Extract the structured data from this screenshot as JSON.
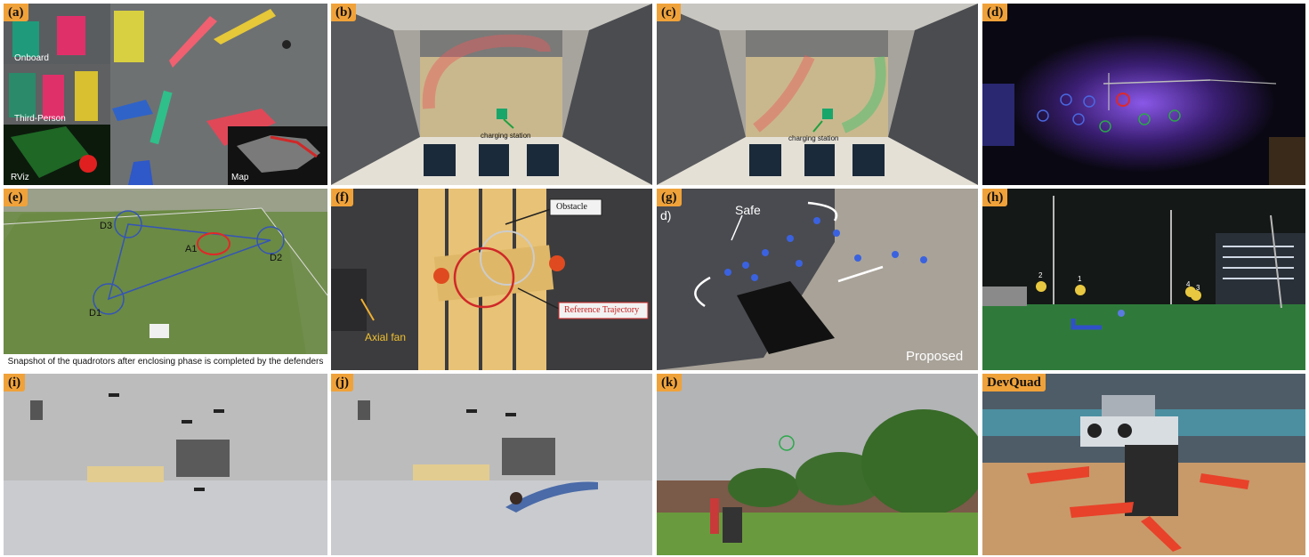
{
  "panels": {
    "a": {
      "tag": "(a)",
      "labels": {
        "onboard": "Onboard",
        "third_person": "Third-Person",
        "rviz": "RViz",
        "map": "Map"
      }
    },
    "b": {
      "tag": "(b)",
      "labels": {
        "charging_station": "charging station"
      }
    },
    "c": {
      "tag": "(c)",
      "labels": {
        "charging_station": "charging station"
      }
    },
    "d": {
      "tag": "(d)"
    },
    "e": {
      "tag": "(e)",
      "labels": {
        "d1": "D1",
        "d2": "D2",
        "d3": "D3",
        "a1": "A1"
      },
      "caption": "Snapshot of the quadrotors after enclosing phase is completed by the defenders"
    },
    "f": {
      "tag": "(f)",
      "labels": {
        "obstacle": "Obstacle",
        "reference_trajectory": "Reference Trajectory",
        "axial_fan": "Axial fan"
      }
    },
    "g": {
      "tag": "(g)",
      "labels": {
        "d_part": "d)",
        "safe": "Safe",
        "proposed": "Proposed"
      }
    },
    "h": {
      "tag": "(h)",
      "labels": {
        "n1": "1",
        "n2": "2",
        "n3": "3",
        "n4": "4"
      }
    },
    "i": {
      "tag": "(i)"
    },
    "j": {
      "tag": "(j)"
    },
    "k": {
      "tag": "(k)"
    },
    "devquad": {
      "tag": "DevQuad"
    }
  },
  "colors": {
    "tag_bg": "#f0a23a",
    "highlight_red": "#e02828",
    "highlight_green": "#2aa84a",
    "highlight_blue": "#3a5bd0"
  }
}
